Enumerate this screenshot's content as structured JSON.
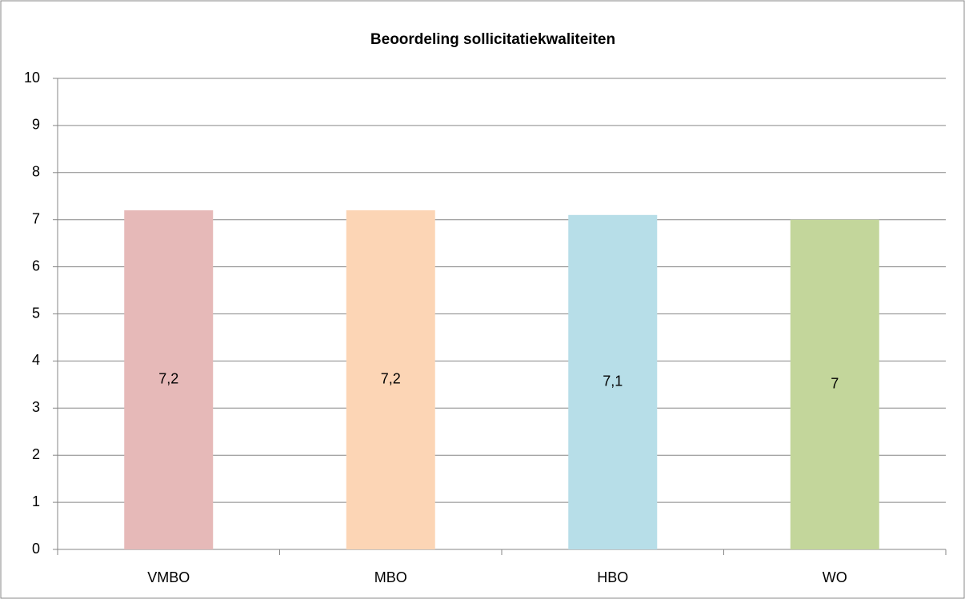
{
  "chart_data": {
    "type": "bar",
    "title": "Beoordeling sollicitatiekwaliteiten",
    "categories": [
      "VMBO",
      "MBO",
      "HBO",
      "WO"
    ],
    "values": [
      7.2,
      7.2,
      7.1,
      7
    ],
    "value_labels": [
      "7,2",
      "7,2",
      "7,1",
      "7"
    ],
    "colors": [
      "#e6b9b8",
      "#fcd5b5",
      "#b7dee8",
      "#c3d69b"
    ],
    "ylim": [
      0,
      10
    ],
    "yticks": [
      0,
      1,
      2,
      3,
      4,
      5,
      6,
      7,
      8,
      9,
      10
    ],
    "grid": true
  }
}
